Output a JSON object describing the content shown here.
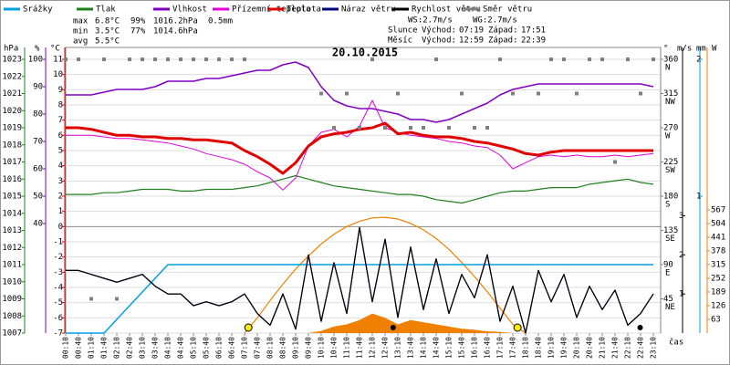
{
  "chart_data": {
    "type": "line",
    "title": "20.10.2015",
    "categories": [
      "00:10",
      "00:40",
      "01:10",
      "01:40",
      "02:10",
      "02:40",
      "03:10",
      "03:40",
      "04:10",
      "04:40",
      "05:10",
      "05:40",
      "06:10",
      "06:40",
      "07:10",
      "07:40",
      "08:10",
      "08:40",
      "09:10",
      "09:40",
      "10:10",
      "10:40",
      "11:10",
      "11:40",
      "12:10",
      "12:40",
      "13:10",
      "13:40",
      "14:10",
      "14:40",
      "15:10",
      "15:40",
      "16:10",
      "16:40",
      "17:10",
      "17:40",
      "18:10",
      "18:40",
      "19:10",
      "19:40",
      "20:10",
      "20:40",
      "21:10",
      "21:40",
      "22:10",
      "22:40",
      "23:10"
    ],
    "x_label": "čas",
    "axes": {
      "pressure": {
        "label": "hPa",
        "color": "#208020",
        "lim": [
          1007,
          1023
        ],
        "ticks": [
          1023,
          1022,
          1021,
          1020,
          1019,
          1018,
          1017,
          1016,
          1015,
          1014,
          1013,
          1012,
          1011,
          1010,
          1009,
          1008,
          1007
        ]
      },
      "humidity": {
        "label": "%",
        "color": "#8000c0",
        "lim": [
          0,
          100
        ],
        "ticks": [
          100,
          90,
          80,
          70,
          60,
          50,
          40
        ]
      },
      "temp": {
        "label": "°C",
        "color": "#e00000",
        "lim": [
          -7,
          11
        ],
        "ticks": [
          11,
          10,
          9,
          8,
          7,
          6,
          5,
          4,
          3,
          2,
          1,
          0,
          -1,
          -2,
          -3,
          -4,
          -5,
          -6,
          -7
        ]
      },
      "direction": {
        "label": "°",
        "color": "#808080",
        "lim": [
          0,
          360
        ],
        "ticks": [
          360,
          315,
          270,
          225,
          180,
          135,
          90,
          45
        ],
        "compass": [
          "N",
          "NW",
          "W",
          "SW",
          "S",
          "SE",
          "E",
          "NE"
        ]
      },
      "wind": {
        "label": "m/s",
        "color": "#000000",
        "lim": [
          0,
          7
        ],
        "ticks": [
          3,
          2,
          1
        ]
      },
      "rain": {
        "label": "mm",
        "color": "#00a0e0",
        "lim": [
          0,
          2
        ],
        "ticks": [
          2,
          1
        ]
      },
      "radiation": {
        "label": "W",
        "color": "#f08000",
        "lim": [
          0,
          1260
        ],
        "ticks": [
          567,
          504,
          441,
          378,
          315,
          252,
          189,
          126,
          63
        ]
      }
    },
    "grid": true,
    "series": [
      {
        "axis": "radiation",
        "mark": "area",
        "color": "#f08000",
        "values": [
          0,
          0,
          0,
          0,
          0,
          0,
          0,
          0,
          0,
          0,
          0,
          0,
          0,
          0,
          0,
          0,
          0,
          0,
          0,
          0,
          10,
          30,
          40,
          60,
          90,
          70,
          40,
          60,
          50,
          40,
          30,
          20,
          15,
          8,
          5,
          0,
          0,
          0,
          0,
          0,
          0,
          0,
          0,
          0,
          0,
          0,
          0
        ]
      },
      {
        "axis": "radiation",
        "mark": "line",
        "color": "#f08000",
        "width": 1.2,
        "values": [
          null,
          null,
          null,
          null,
          null,
          null,
          null,
          null,
          null,
          null,
          null,
          null,
          null,
          null,
          0,
          70,
          150,
          225,
          295,
          355,
          410,
          455,
          490,
          515,
          530,
          533,
          525,
          505,
          475,
          435,
          385,
          325,
          260,
          190,
          115,
          40,
          0,
          null,
          null,
          null,
          null,
          null,
          null,
          null,
          null,
          null,
          null
        ]
      },
      {
        "name": "Srážky",
        "axis": "rain",
        "mark": "line",
        "color": "#00a0e0",
        "width": 1.5,
        "values": [
          0,
          0,
          0,
          0,
          0.1,
          0.2,
          0.3,
          0.4,
          0.5,
          0.5,
          0.5,
          0.5,
          0.5,
          0.5,
          0.5,
          0.5,
          0.5,
          0.5,
          0.5,
          0.5,
          0.5,
          0.5,
          0.5,
          0.5,
          0.5,
          0.5,
          0.5,
          0.5,
          0.5,
          0.5,
          0.5,
          0.5,
          0.5,
          0.5,
          0.5,
          0.5,
          0.5,
          0.5,
          0.5,
          0.5,
          0.5,
          0.5,
          0.5,
          0.5,
          0.5,
          0.5,
          0.5
        ]
      },
      {
        "name": "Tlak",
        "axis": "pressure",
        "mark": "line",
        "color": "#208020",
        "width": 1.2,
        "values": [
          1015.1,
          1015.1,
          1015.1,
          1015.2,
          1015.2,
          1015.3,
          1015.4,
          1015.4,
          1015.4,
          1015.3,
          1015.3,
          1015.4,
          1015.4,
          1015.4,
          1015.5,
          1015.6,
          1015.8,
          1016.0,
          1016.2,
          1016.0,
          1015.8,
          1015.6,
          1015.5,
          1015.4,
          1015.3,
          1015.2,
          1015.1,
          1015.1,
          1015.0,
          1014.8,
          1014.7,
          1014.6,
          1014.8,
          1015.0,
          1015.2,
          1015.3,
          1015.3,
          1015.4,
          1015.5,
          1015.5,
          1015.5,
          1015.7,
          1015.8,
          1015.9,
          1016.0,
          1015.8,
          1015.7
        ]
      },
      {
        "name": "Vlhkost",
        "axis": "humidity",
        "mark": "line",
        "color": "#8000c0",
        "width": 1.5,
        "values": [
          87,
          87,
          87,
          88,
          89,
          89,
          89,
          90,
          92,
          92,
          92,
          93,
          93,
          94,
          95,
          96,
          96,
          98,
          99,
          97,
          90,
          85,
          83,
          82,
          82,
          81,
          80,
          78,
          78,
          77,
          78,
          80,
          82,
          84,
          87,
          89,
          90,
          91,
          91,
          91,
          91,
          91,
          91,
          91,
          91,
          91,
          90
        ]
      },
      {
        "name": "Přízemní teplota",
        "axis": "temp",
        "mark": "line",
        "color": "#e000e0",
        "width": 1,
        "values": [
          6.0,
          6.0,
          6.0,
          5.9,
          5.8,
          5.8,
          5.7,
          5.6,
          5.5,
          5.3,
          5.1,
          4.8,
          4.6,
          4.4,
          4.1,
          3.6,
          3.2,
          2.4,
          3.2,
          5.3,
          6.2,
          6.4,
          5.9,
          6.6,
          8.3,
          6.5,
          6.2,
          6.0,
          5.9,
          5.8,
          5.6,
          5.5,
          5.3,
          5.2,
          4.7,
          3.8,
          4.2,
          4.6,
          4.7,
          4.6,
          4.7,
          4.6,
          4.6,
          4.7,
          4.6,
          4.7,
          4.8
        ]
      },
      {
        "name": "Teplota",
        "axis": "temp",
        "mark": "line",
        "color": "#e00000",
        "width": 3,
        "values": [
          6.5,
          6.5,
          6.4,
          6.2,
          6.0,
          6.0,
          5.9,
          5.9,
          5.8,
          5.8,
          5.7,
          5.7,
          5.6,
          5.5,
          5.0,
          4.6,
          4.1,
          3.5,
          4.2,
          5.3,
          5.9,
          6.1,
          6.2,
          6.4,
          6.5,
          6.8,
          6.1,
          6.2,
          6.0,
          5.9,
          5.9,
          5.8,
          5.6,
          5.5,
          5.3,
          5.1,
          4.8,
          4.7,
          4.9,
          5.0,
          5.0,
          5.0,
          5.0,
          5.0,
          5.0,
          5.0,
          5.0
        ]
      },
      {
        "name": "Náraz větru",
        "axis": "wind",
        "mark": "line",
        "color": "#000080",
        "width": 1.2,
        "values": [
          1.6,
          1.6,
          1.5,
          1.4,
          1.3,
          1.4,
          1.5,
          1.2,
          1.0,
          1.0,
          0.7,
          0.8,
          0.7,
          0.8,
          1.0,
          0.5,
          0.2,
          1.0,
          0.1,
          2.0,
          0.3,
          1.8,
          0.5,
          2.7,
          0.8,
          2.4,
          0.4,
          2.2,
          0.6,
          1.9,
          0.5,
          1.5,
          0.9,
          2.0,
          0.3,
          1.2,
          0.0,
          1.6,
          0.8,
          1.5,
          0.4,
          1.2,
          0.6,
          1.1,
          0.2,
          0.5,
          1.0
        ]
      },
      {
        "name": "Rychlost větru",
        "axis": "wind",
        "mark": "line",
        "color": "#000000",
        "width": 1.2,
        "values": [
          1.6,
          1.6,
          1.5,
          1.4,
          1.3,
          1.4,
          1.5,
          1.2,
          1.0,
          1.0,
          0.7,
          0.8,
          0.7,
          0.8,
          1.0,
          0.5,
          0.2,
          1.0,
          0.1,
          2.0,
          0.3,
          1.8,
          0.5,
          2.7,
          0.8,
          2.4,
          0.4,
          2.2,
          0.6,
          1.9,
          0.5,
          1.5,
          0.9,
          2.0,
          0.3,
          1.2,
          0.0,
          1.6,
          0.8,
          1.5,
          0.4,
          1.2,
          0.6,
          1.1,
          0.2,
          0.5,
          1.0
        ]
      },
      {
        "name": "Směr větru",
        "axis": "direction",
        "mark": "points",
        "color": "#808080",
        "values": [
          360,
          360,
          45,
          360,
          45,
          360,
          360,
          360,
          360,
          360,
          360,
          360,
          360,
          360,
          360,
          null,
          null,
          null,
          null,
          null,
          315,
          270,
          315,
          270,
          360,
          270,
          315,
          270,
          270,
          360,
          270,
          315,
          270,
          270,
          360,
          315,
          null,
          315,
          360,
          360,
          315,
          360,
          360,
          225,
          360,
          315,
          360
        ]
      }
    ],
    "stats": [
      {
        "label": "max",
        "temp": "6.8°C",
        "humidity": "99%",
        "pressure": "1016.2hPa",
        "rain": "0.5mm"
      },
      {
        "label": "min",
        "temp": "3.5°C",
        "humidity": "77%",
        "pressure": "1014.6hPa"
      },
      {
        "label": "avg",
        "temp": "5.5°C"
      }
    ],
    "wind_speed": "WS:2.7m/s",
    "wind_gust": "WG:2.7m/s",
    "sun": {
      "label": "Slunce",
      "rise_label": "Východ:",
      "rise": "07:19",
      "set_label": "Západ:",
      "set": "17:51"
    },
    "moon": {
      "label": "Měsíc",
      "rise_label": "Východ:",
      "rise": "12:59",
      "set_label": "Západ:",
      "set": "22:39"
    }
  }
}
